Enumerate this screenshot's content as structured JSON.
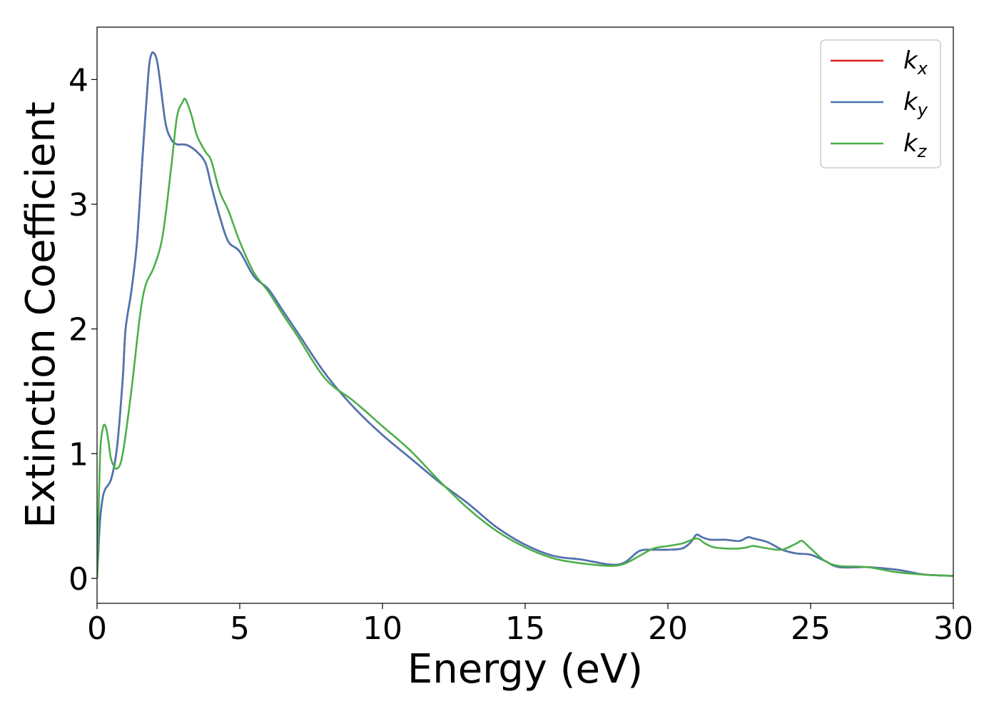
{
  "chart_data": {
    "type": "line",
    "title": "",
    "xlabel": "Energy (eV)",
    "ylabel": "Extinction Coefficient",
    "xlim": [
      0,
      30
    ],
    "ylim": [
      -0.2,
      4.42
    ],
    "x_ticks": [
      0,
      5,
      10,
      15,
      20,
      25,
      30
    ],
    "x_tick_labels": [
      "0",
      "5",
      "10",
      "15",
      "20",
      "25",
      "30"
    ],
    "y_ticks": [
      0,
      1,
      2,
      3,
      4
    ],
    "y_tick_labels": [
      "0",
      "1",
      "2",
      "3",
      "4"
    ],
    "grid": false,
    "legend_position": "top-right",
    "series": [
      {
        "name": "k",
        "subscript": "x",
        "color": "#e41a1c",
        "x": [
          0,
          0.1,
          0.2,
          0.3,
          0.5,
          0.7,
          0.9,
          1.0,
          1.2,
          1.4,
          1.6,
          1.8,
          1.9,
          2.0,
          2.1,
          2.2,
          2.4,
          2.6,
          2.8,
          3.0,
          3.2,
          3.5,
          3.8,
          4.0,
          4.3,
          4.6,
          5.0,
          5.5,
          6.0,
          6.5,
          7.0,
          8.0,
          9.0,
          10.0,
          11.0,
          12.0,
          13.0,
          14.0,
          15.0,
          16.0,
          17.0,
          18.0,
          18.5,
          19.0,
          19.5,
          20.0,
          20.5,
          20.8,
          21.0,
          21.2,
          21.5,
          22.0,
          22.5,
          22.8,
          23.0,
          23.5,
          24.0,
          24.5,
          25.0,
          25.5,
          26.0,
          27.0,
          28.0,
          28.5,
          29.0,
          30.0
        ],
        "y": [
          0,
          0.45,
          0.65,
          0.72,
          0.8,
          1.05,
          1.6,
          2.0,
          2.3,
          2.7,
          3.4,
          4.05,
          4.2,
          4.21,
          4.15,
          4.0,
          3.65,
          3.52,
          3.48,
          3.48,
          3.47,
          3.42,
          3.33,
          3.15,
          2.9,
          2.7,
          2.62,
          2.42,
          2.32,
          2.15,
          1.98,
          1.64,
          1.37,
          1.15,
          0.96,
          0.77,
          0.6,
          0.41,
          0.27,
          0.18,
          0.15,
          0.11,
          0.13,
          0.22,
          0.23,
          0.23,
          0.24,
          0.29,
          0.35,
          0.33,
          0.31,
          0.31,
          0.3,
          0.33,
          0.32,
          0.29,
          0.23,
          0.2,
          0.19,
          0.14,
          0.09,
          0.09,
          0.07,
          0.05,
          0.03,
          0.02
        ]
      },
      {
        "name": "k",
        "subscript": "y",
        "color": "#4a76b2",
        "x": [
          0,
          0.1,
          0.2,
          0.3,
          0.5,
          0.7,
          0.9,
          1.0,
          1.2,
          1.4,
          1.6,
          1.8,
          1.9,
          2.0,
          2.1,
          2.2,
          2.4,
          2.6,
          2.8,
          3.0,
          3.2,
          3.5,
          3.8,
          4.0,
          4.3,
          4.6,
          5.0,
          5.5,
          6.0,
          6.5,
          7.0,
          8.0,
          9.0,
          10.0,
          11.0,
          12.0,
          13.0,
          14.0,
          15.0,
          16.0,
          17.0,
          18.0,
          18.5,
          19.0,
          19.5,
          20.0,
          20.5,
          20.8,
          21.0,
          21.2,
          21.5,
          22.0,
          22.5,
          22.8,
          23.0,
          23.5,
          24.0,
          24.5,
          25.0,
          25.5,
          26.0,
          27.0,
          28.0,
          28.5,
          29.0,
          30.0
        ],
        "y": [
          0,
          0.45,
          0.65,
          0.72,
          0.8,
          1.05,
          1.6,
          2.0,
          2.3,
          2.7,
          3.4,
          4.05,
          4.2,
          4.21,
          4.15,
          4.0,
          3.65,
          3.52,
          3.48,
          3.48,
          3.47,
          3.42,
          3.33,
          3.15,
          2.9,
          2.7,
          2.62,
          2.42,
          2.32,
          2.15,
          1.98,
          1.64,
          1.37,
          1.15,
          0.96,
          0.77,
          0.6,
          0.41,
          0.27,
          0.18,
          0.15,
          0.11,
          0.13,
          0.22,
          0.23,
          0.23,
          0.24,
          0.29,
          0.35,
          0.33,
          0.31,
          0.31,
          0.3,
          0.33,
          0.32,
          0.29,
          0.23,
          0.2,
          0.19,
          0.14,
          0.09,
          0.09,
          0.07,
          0.05,
          0.03,
          0.02
        ]
      },
      {
        "name": "k",
        "subscript": "z",
        "color": "#4daf4a",
        "x": [
          0,
          0.1,
          0.2,
          0.3,
          0.4,
          0.5,
          0.7,
          0.9,
          1.2,
          1.5,
          1.7,
          2.0,
          2.3,
          2.6,
          2.8,
          3.0,
          3.1,
          3.3,
          3.5,
          3.8,
          4.0,
          4.3,
          4.6,
          5.0,
          5.5,
          6.0,
          6.5,
          7.0,
          8.0,
          9.0,
          10.0,
          11.0,
          12.0,
          13.0,
          14.0,
          15.0,
          16.0,
          17.0,
          18.0,
          18.5,
          19.0,
          19.5,
          20.0,
          20.5,
          21.0,
          21.3,
          21.6,
          22.0,
          22.5,
          22.8,
          23.0,
          23.5,
          24.0,
          24.5,
          24.7,
          25.0,
          25.5,
          26.0,
          27.0,
          28.0,
          29.0,
          30.0
        ],
        "y": [
          0,
          0.95,
          1.2,
          1.22,
          1.1,
          0.95,
          0.88,
          1.0,
          1.5,
          2.1,
          2.35,
          2.5,
          2.75,
          3.3,
          3.7,
          3.82,
          3.84,
          3.72,
          3.55,
          3.42,
          3.35,
          3.1,
          2.95,
          2.7,
          2.45,
          2.3,
          2.12,
          1.95,
          1.6,
          1.42,
          1.22,
          1.02,
          0.78,
          0.56,
          0.38,
          0.25,
          0.16,
          0.12,
          0.1,
          0.12,
          0.18,
          0.24,
          0.26,
          0.28,
          0.32,
          0.28,
          0.25,
          0.24,
          0.24,
          0.25,
          0.26,
          0.24,
          0.23,
          0.28,
          0.3,
          0.24,
          0.14,
          0.1,
          0.09,
          0.05,
          0.03,
          0.02
        ]
      }
    ]
  }
}
